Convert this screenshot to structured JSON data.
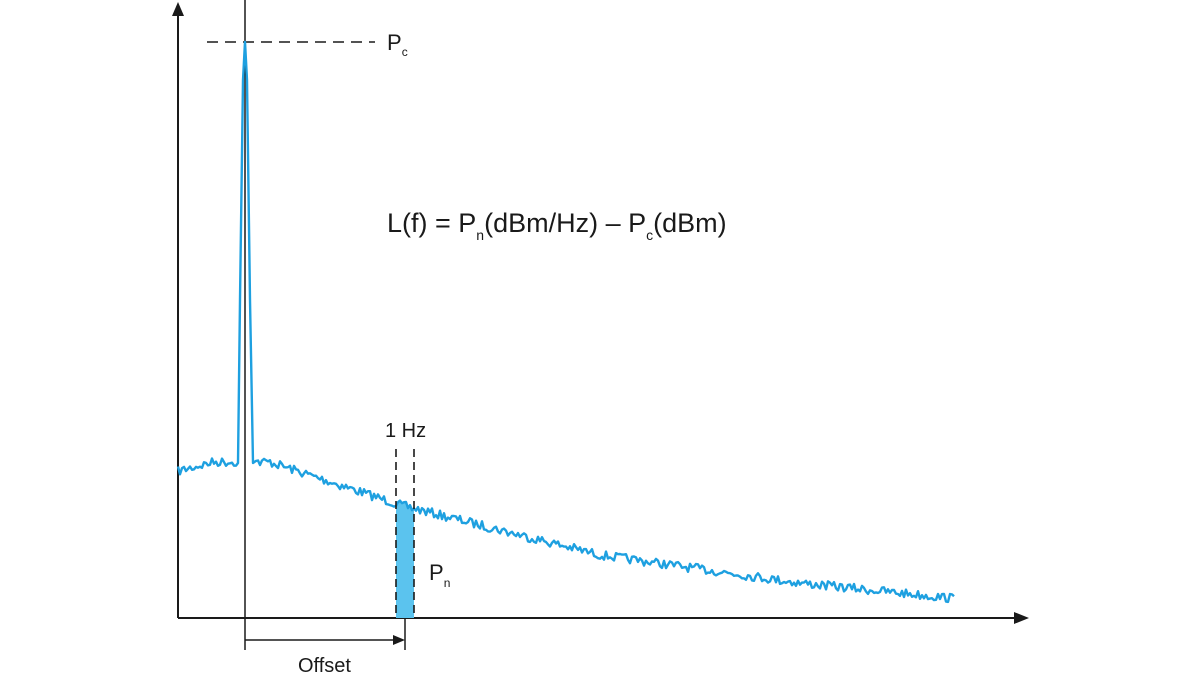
{
  "labels": {
    "carrier_power": "P",
    "carrier_power_sub": "c",
    "noise_power": "P",
    "noise_power_sub": "n",
    "bandwidth": "1 Hz",
    "offset": "Offset"
  },
  "formula": {
    "lhs": "L(f) = P",
    "pn_sub": "n",
    "middle": "(dBm/Hz) – P",
    "pc_sub": "c",
    "rhs": "(dBm)"
  },
  "colors": {
    "trace": "#1ea0e0",
    "band_fill": "#5bc3ee",
    "axis": "#1a1a1a"
  }
}
